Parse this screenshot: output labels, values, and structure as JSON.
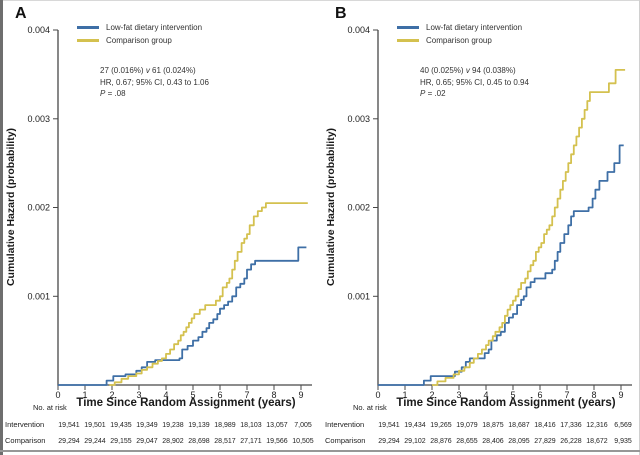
{
  "chart_data": [
    {
      "panel_label": "A",
      "type": "line",
      "subtype": "cumulative-hazard-step",
      "xlabel": "Time Since Random Assignment (years)",
      "ylabel": "Cumulative Hazard (probability)",
      "xlim": [
        0,
        9.3
      ],
      "ylim": [
        0,
        0.004
      ],
      "xticks": [
        "0",
        "1",
        "2",
        "3",
        "4",
        "5",
        "6",
        "7",
        "8",
        "9"
      ],
      "yticks": [
        {
          "value": 0.001,
          "label": "0.001"
        },
        {
          "value": 0.002,
          "label": "0.002"
        },
        {
          "value": 0.003,
          "label": "0.003"
        },
        {
          "value": 0.004,
          "label": "0.004"
        }
      ],
      "legend_position": "top-left-inside",
      "grid": false,
      "annotation": {
        "events_intervention": "27 (0.016%)",
        "vs": " v ",
        "events_comparison": "61 (0.024%)",
        "hr_line": "HR, 0.67; 95% CI, 0.43 to 1.06",
        "p_label": "P",
        "p_rest": " = .08"
      },
      "series": [
        {
          "id": "intervention",
          "name": "Low-fat dietary intervention",
          "color": "#3e6fa6",
          "t_start": 0,
          "t_end": 9.2,
          "points": [
            [
              1.8,
              5e-05
            ],
            [
              2.05,
              0.0001
            ],
            [
              2.5,
              0.00012
            ],
            [
              2.9,
              0.00016
            ],
            [
              3.1,
              0.0002
            ],
            [
              3.3,
              0.00026
            ],
            [
              3.6,
              0.00028
            ],
            [
              4.5,
              0.0003
            ],
            [
              4.6,
              0.0004
            ],
            [
              4.8,
              0.00044
            ],
            [
              5.0,
              0.0005
            ],
            [
              5.2,
              0.00054
            ],
            [
              5.35,
              0.0006
            ],
            [
              5.5,
              0.00064
            ],
            [
              5.6,
              0.0007
            ],
            [
              5.75,
              0.00074
            ],
            [
              5.9,
              0.0008
            ],
            [
              6.0,
              0.00086
            ],
            [
              6.15,
              0.0009
            ],
            [
              6.3,
              0.00094
            ],
            [
              6.45,
              0.001
            ],
            [
              6.6,
              0.0011
            ],
            [
              6.75,
              0.00114
            ],
            [
              6.9,
              0.0012
            ],
            [
              7.0,
              0.0013
            ],
            [
              7.15,
              0.00136
            ],
            [
              7.3,
              0.0014
            ],
            [
              8.9,
              0.00155
            ]
          ]
        },
        {
          "id": "comparison",
          "name": "Comparison group",
          "color": "#d4c14f",
          "t_start": 1.9,
          "t_end": 9.25,
          "points": [
            [
              2.1,
              3e-05
            ],
            [
              2.35,
              7e-05
            ],
            [
              2.6,
              0.0001
            ],
            [
              2.9,
              0.00013
            ],
            [
              3.1,
              0.00017
            ],
            [
              3.3,
              0.0002
            ],
            [
              3.5,
              0.00024
            ],
            [
              3.7,
              0.00027
            ],
            [
              3.85,
              0.0003
            ],
            [
              4.0,
              0.00035
            ],
            [
              4.15,
              0.0004
            ],
            [
              4.3,
              0.00046
            ],
            [
              4.45,
              0.0005
            ],
            [
              4.55,
              0.00056
            ],
            [
              4.65,
              0.0006
            ],
            [
              4.75,
              0.00065
            ],
            [
              4.85,
              0.0007
            ],
            [
              4.95,
              0.00075
            ],
            [
              5.05,
              0.0008
            ],
            [
              5.25,
              0.00085
            ],
            [
              5.45,
              0.0009
            ],
            [
              5.85,
              0.00095
            ],
            [
              6.0,
              0.001
            ],
            [
              6.1,
              0.0011
            ],
            [
              6.25,
              0.00115
            ],
            [
              6.35,
              0.0012
            ],
            [
              6.45,
              0.0013
            ],
            [
              6.55,
              0.0014
            ],
            [
              6.65,
              0.0015
            ],
            [
              6.8,
              0.0016
            ],
            [
              6.9,
              0.00165
            ],
            [
              7.0,
              0.0017
            ],
            [
              7.1,
              0.0018
            ],
            [
              7.25,
              0.0019
            ],
            [
              7.4,
              0.00196
            ],
            [
              7.55,
              0.002
            ],
            [
              7.7,
              0.00205
            ]
          ]
        }
      ],
      "risk_table": {
        "header": "No. at risk",
        "rows": [
          {
            "label": "Intervention",
            "values": [
              "19,541",
              "19,501",
              "19,435",
              "19,349",
              "19,238",
              "19,139",
              "18,989",
              "18,103",
              "13,057",
              "7,005"
            ]
          },
          {
            "label": "Comparison",
            "values": [
              "29,294",
              "29,244",
              "29,155",
              "29,047",
              "28,902",
              "28,698",
              "28,517",
              "27,171",
              "19,566",
              "10,505"
            ]
          }
        ]
      }
    },
    {
      "panel_label": "B",
      "type": "line",
      "subtype": "cumulative-hazard-step",
      "xlabel": "Time Since Random Assignment (years)",
      "ylabel": "Cumulative Hazard (probability)",
      "xlim": [
        0,
        9.3
      ],
      "ylim": [
        0,
        0.004
      ],
      "xticks": [
        "0",
        "1",
        "2",
        "3",
        "4",
        "5",
        "6",
        "7",
        "8",
        "9"
      ],
      "yticks": [
        {
          "value": 0.001,
          "label": "0.001"
        },
        {
          "value": 0.002,
          "label": "0.002"
        },
        {
          "value": 0.003,
          "label": "0.003"
        },
        {
          "value": 0.004,
          "label": "0.004"
        }
      ],
      "legend_position": "top-left-inside",
      "grid": false,
      "annotation": {
        "events_intervention": "40 (0.025%)",
        "vs": " v ",
        "events_comparison": "94 (0.038%)",
        "hr_line": "HR, 0.65; 95% CI, 0.45 to 0.94",
        "p_label": "P",
        "p_rest": " = .02"
      },
      "series": [
        {
          "id": "intervention",
          "name": "Low-fat dietary intervention",
          "color": "#3e6fa6",
          "t_start": 0,
          "t_end": 9.1,
          "points": [
            [
              1.7,
              5e-05
            ],
            [
              1.95,
              0.0001
            ],
            [
              2.85,
              0.00015
            ],
            [
              3.1,
              0.0002
            ],
            [
              3.25,
              0.00026
            ],
            [
              3.4,
              0.0003
            ],
            [
              3.95,
              0.00036
            ],
            [
              4.1,
              0.0004
            ],
            [
              4.2,
              0.0005
            ],
            [
              4.4,
              0.00056
            ],
            [
              4.55,
              0.0006
            ],
            [
              4.7,
              0.0007
            ],
            [
              4.85,
              0.00076
            ],
            [
              5.0,
              0.0008
            ],
            [
              5.15,
              0.0009
            ],
            [
              5.3,
              0.00096
            ],
            [
              5.4,
              0.001
            ],
            [
              5.5,
              0.0011
            ],
            [
              5.65,
              0.00116
            ],
            [
              5.8,
              0.0012
            ],
            [
              6.2,
              0.00126
            ],
            [
              6.45,
              0.0013
            ],
            [
              6.55,
              0.0014
            ],
            [
              6.65,
              0.0015
            ],
            [
              6.75,
              0.0016
            ],
            [
              6.9,
              0.0017
            ],
            [
              7.05,
              0.0018
            ],
            [
              7.15,
              0.0019
            ],
            [
              7.25,
              0.00196
            ],
            [
              7.8,
              0.002
            ],
            [
              7.95,
              0.0021
            ],
            [
              8.05,
              0.0022
            ],
            [
              8.2,
              0.0023
            ],
            [
              8.5,
              0.0024
            ],
            [
              8.75,
              0.0025
            ],
            [
              8.95,
              0.0027
            ]
          ]
        },
        {
          "id": "comparison",
          "name": "Comparison group",
          "color": "#d4c14f",
          "t_start": 2.0,
          "t_end": 9.15,
          "points": [
            [
              2.2,
              4e-05
            ],
            [
              2.5,
              8e-05
            ],
            [
              2.8,
              0.00012
            ],
            [
              3.0,
              0.00016
            ],
            [
              3.2,
              0.0002
            ],
            [
              3.4,
              0.00025
            ],
            [
              3.55,
              0.0003
            ],
            [
              3.7,
              0.00035
            ],
            [
              3.85,
              0.0004
            ],
            [
              4.0,
              0.00045
            ],
            [
              4.1,
              0.0005
            ],
            [
              4.25,
              0.00055
            ],
            [
              4.35,
              0.0006
            ],
            [
              4.5,
              0.00065
            ],
            [
              4.6,
              0.0007
            ],
            [
              4.7,
              0.00078
            ],
            [
              4.8,
              0.00085
            ],
            [
              4.9,
              0.0009
            ],
            [
              5.0,
              0.00095
            ],
            [
              5.1,
              0.001
            ],
            [
              5.2,
              0.00108
            ],
            [
              5.3,
              0.00115
            ],
            [
              5.45,
              0.0012
            ],
            [
              5.55,
              0.00128
            ],
            [
              5.65,
              0.00135
            ],
            [
              5.75,
              0.0014
            ],
            [
              5.85,
              0.0015
            ],
            [
              5.95,
              0.00155
            ],
            [
              6.05,
              0.0016
            ],
            [
              6.15,
              0.0017
            ],
            [
              6.25,
              0.00175
            ],
            [
              6.35,
              0.0018
            ],
            [
              6.45,
              0.0019
            ],
            [
              6.55,
              0.002
            ],
            [
              6.65,
              0.0021
            ],
            [
              6.75,
              0.0022
            ],
            [
              6.85,
              0.0023
            ],
            [
              6.95,
              0.0024
            ],
            [
              7.05,
              0.0025
            ],
            [
              7.15,
              0.0026
            ],
            [
              7.25,
              0.0027
            ],
            [
              7.35,
              0.0028
            ],
            [
              7.45,
              0.0029
            ],
            [
              7.55,
              0.003
            ],
            [
              7.65,
              0.0031
            ],
            [
              7.75,
              0.0032
            ],
            [
              7.85,
              0.0033
            ],
            [
              8.55,
              0.0034
            ],
            [
              8.8,
              0.00355
            ]
          ]
        }
      ],
      "risk_table": {
        "header": "No. at risk",
        "rows": [
          {
            "label": "Intervention",
            "values": [
              "19,541",
              "19,434",
              "19,265",
              "19,079",
              "18,875",
              "18,687",
              "18,416",
              "17,336",
              "12,316",
              "6,569"
            ]
          },
          {
            "label": "Comparison",
            "values": [
              "29,294",
              "29,102",
              "28,876",
              "28,655",
              "28,406",
              "28,095",
              "27,829",
              "26,228",
              "18,672",
              "9,935"
            ]
          }
        ]
      }
    }
  ]
}
